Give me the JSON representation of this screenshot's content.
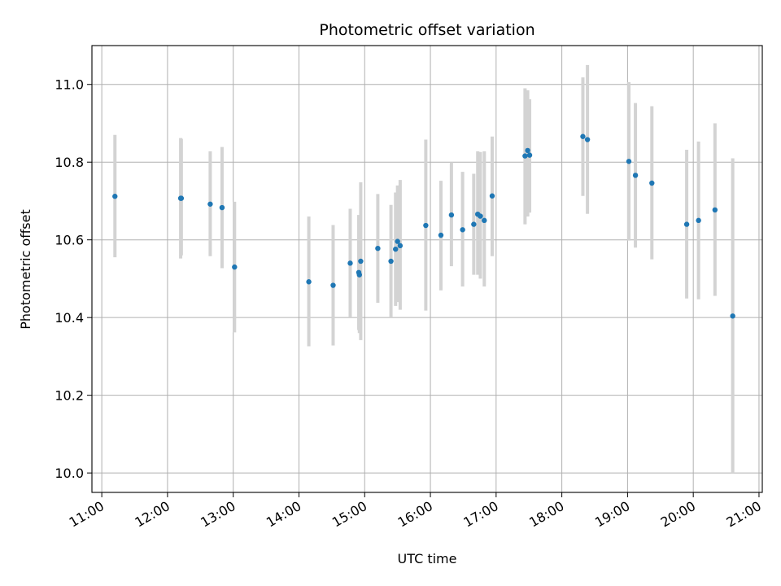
{
  "chart_data": {
    "type": "scatter",
    "title": "Photometric offset variation",
    "xlabel": "UTC time",
    "ylabel": "Photometric offset",
    "x_ticks": [
      "11:00",
      "12:00",
      "13:00",
      "14:00",
      "15:00",
      "16:00",
      "17:00",
      "18:00",
      "19:00",
      "20:00",
      "21:00"
    ],
    "y_ticks": [
      "10.0",
      "10.2",
      "10.4",
      "10.6",
      "10.8",
      "11.0"
    ],
    "x_range_hours": [
      10.85,
      21.05
    ],
    "y_range": [
      9.95,
      11.1
    ],
    "grid": true,
    "colors": {
      "point": "#1f77b4",
      "errorbar": "#d3d3d3",
      "grid": "#b0b0b0"
    },
    "points": [
      {
        "t": 11.2,
        "y": 10.712,
        "lo": 10.555,
        "hi": 10.87
      },
      {
        "t": 12.2,
        "y": 10.707,
        "lo": 10.552,
        "hi": 10.862
      },
      {
        "t": 12.21,
        "y": 10.707,
        "lo": 10.56,
        "hi": 10.86
      },
      {
        "t": 12.65,
        "y": 10.692,
        "lo": 10.558,
        "hi": 10.828
      },
      {
        "t": 12.83,
        "y": 10.683,
        "lo": 10.527,
        "hi": 10.839
      },
      {
        "t": 13.02,
        "y": 10.53,
        "lo": 10.362,
        "hi": 10.698
      },
      {
        "t": 14.15,
        "y": 10.492,
        "lo": 10.326,
        "hi": 10.66
      },
      {
        "t": 14.52,
        "y": 10.483,
        "lo": 10.328,
        "hi": 10.638
      },
      {
        "t": 14.78,
        "y": 10.54,
        "lo": 10.4,
        "hi": 10.68
      },
      {
        "t": 14.91,
        "y": 10.516,
        "lo": 10.368,
        "hi": 10.664
      },
      {
        "t": 14.92,
        "y": 10.51,
        "lo": 10.36,
        "hi": 10.66
      },
      {
        "t": 14.94,
        "y": 10.545,
        "lo": 10.342,
        "hi": 10.748
      },
      {
        "t": 15.2,
        "y": 10.578,
        "lo": 10.438,
        "hi": 10.718
      },
      {
        "t": 15.4,
        "y": 10.545,
        "lo": 10.4,
        "hi": 10.69
      },
      {
        "t": 15.47,
        "y": 10.576,
        "lo": 10.43,
        "hi": 10.722
      },
      {
        "t": 15.5,
        "y": 10.596,
        "lo": 10.44,
        "hi": 10.74
      },
      {
        "t": 15.54,
        "y": 10.585,
        "lo": 10.42,
        "hi": 10.754
      },
      {
        "t": 15.93,
        "y": 10.637,
        "lo": 10.418,
        "hi": 10.858
      },
      {
        "t": 16.16,
        "y": 10.612,
        "lo": 10.47,
        "hi": 10.752
      },
      {
        "t": 16.32,
        "y": 10.664,
        "lo": 10.532,
        "hi": 10.8
      },
      {
        "t": 16.49,
        "y": 10.626,
        "lo": 10.48,
        "hi": 10.775
      },
      {
        "t": 16.66,
        "y": 10.64,
        "lo": 10.51,
        "hi": 10.77
      },
      {
        "t": 16.72,
        "y": 10.666,
        "lo": 10.51,
        "hi": 10.828
      },
      {
        "t": 16.76,
        "y": 10.661,
        "lo": 10.5,
        "hi": 10.826
      },
      {
        "t": 16.82,
        "y": 10.65,
        "lo": 10.48,
        "hi": 10.828
      },
      {
        "t": 16.94,
        "y": 10.713,
        "lo": 10.558,
        "hi": 10.866
      },
      {
        "t": 17.44,
        "y": 10.816,
        "lo": 10.64,
        "hi": 10.99
      },
      {
        "t": 17.48,
        "y": 10.83,
        "lo": 10.66,
        "hi": 10.985
      },
      {
        "t": 17.51,
        "y": 10.818,
        "lo": 10.67,
        "hi": 10.962
      },
      {
        "t": 18.32,
        "y": 10.866,
        "lo": 10.713,
        "hi": 11.018
      },
      {
        "t": 18.39,
        "y": 10.858,
        "lo": 10.667,
        "hi": 11.05
      },
      {
        "t": 19.02,
        "y": 10.802,
        "lo": 10.598,
        "hi": 11.006
      },
      {
        "t": 19.12,
        "y": 10.766,
        "lo": 10.58,
        "hi": 10.952
      },
      {
        "t": 19.37,
        "y": 10.746,
        "lo": 10.55,
        "hi": 10.944
      },
      {
        "t": 19.9,
        "y": 10.64,
        "lo": 10.449,
        "hi": 10.832
      },
      {
        "t": 20.08,
        "y": 10.65,
        "lo": 10.447,
        "hi": 10.853
      },
      {
        "t": 20.33,
        "y": 10.677,
        "lo": 10.456,
        "hi": 10.9
      },
      {
        "t": 20.6,
        "y": 10.404,
        "lo": 10.0,
        "hi": 10.81
      }
    ]
  }
}
